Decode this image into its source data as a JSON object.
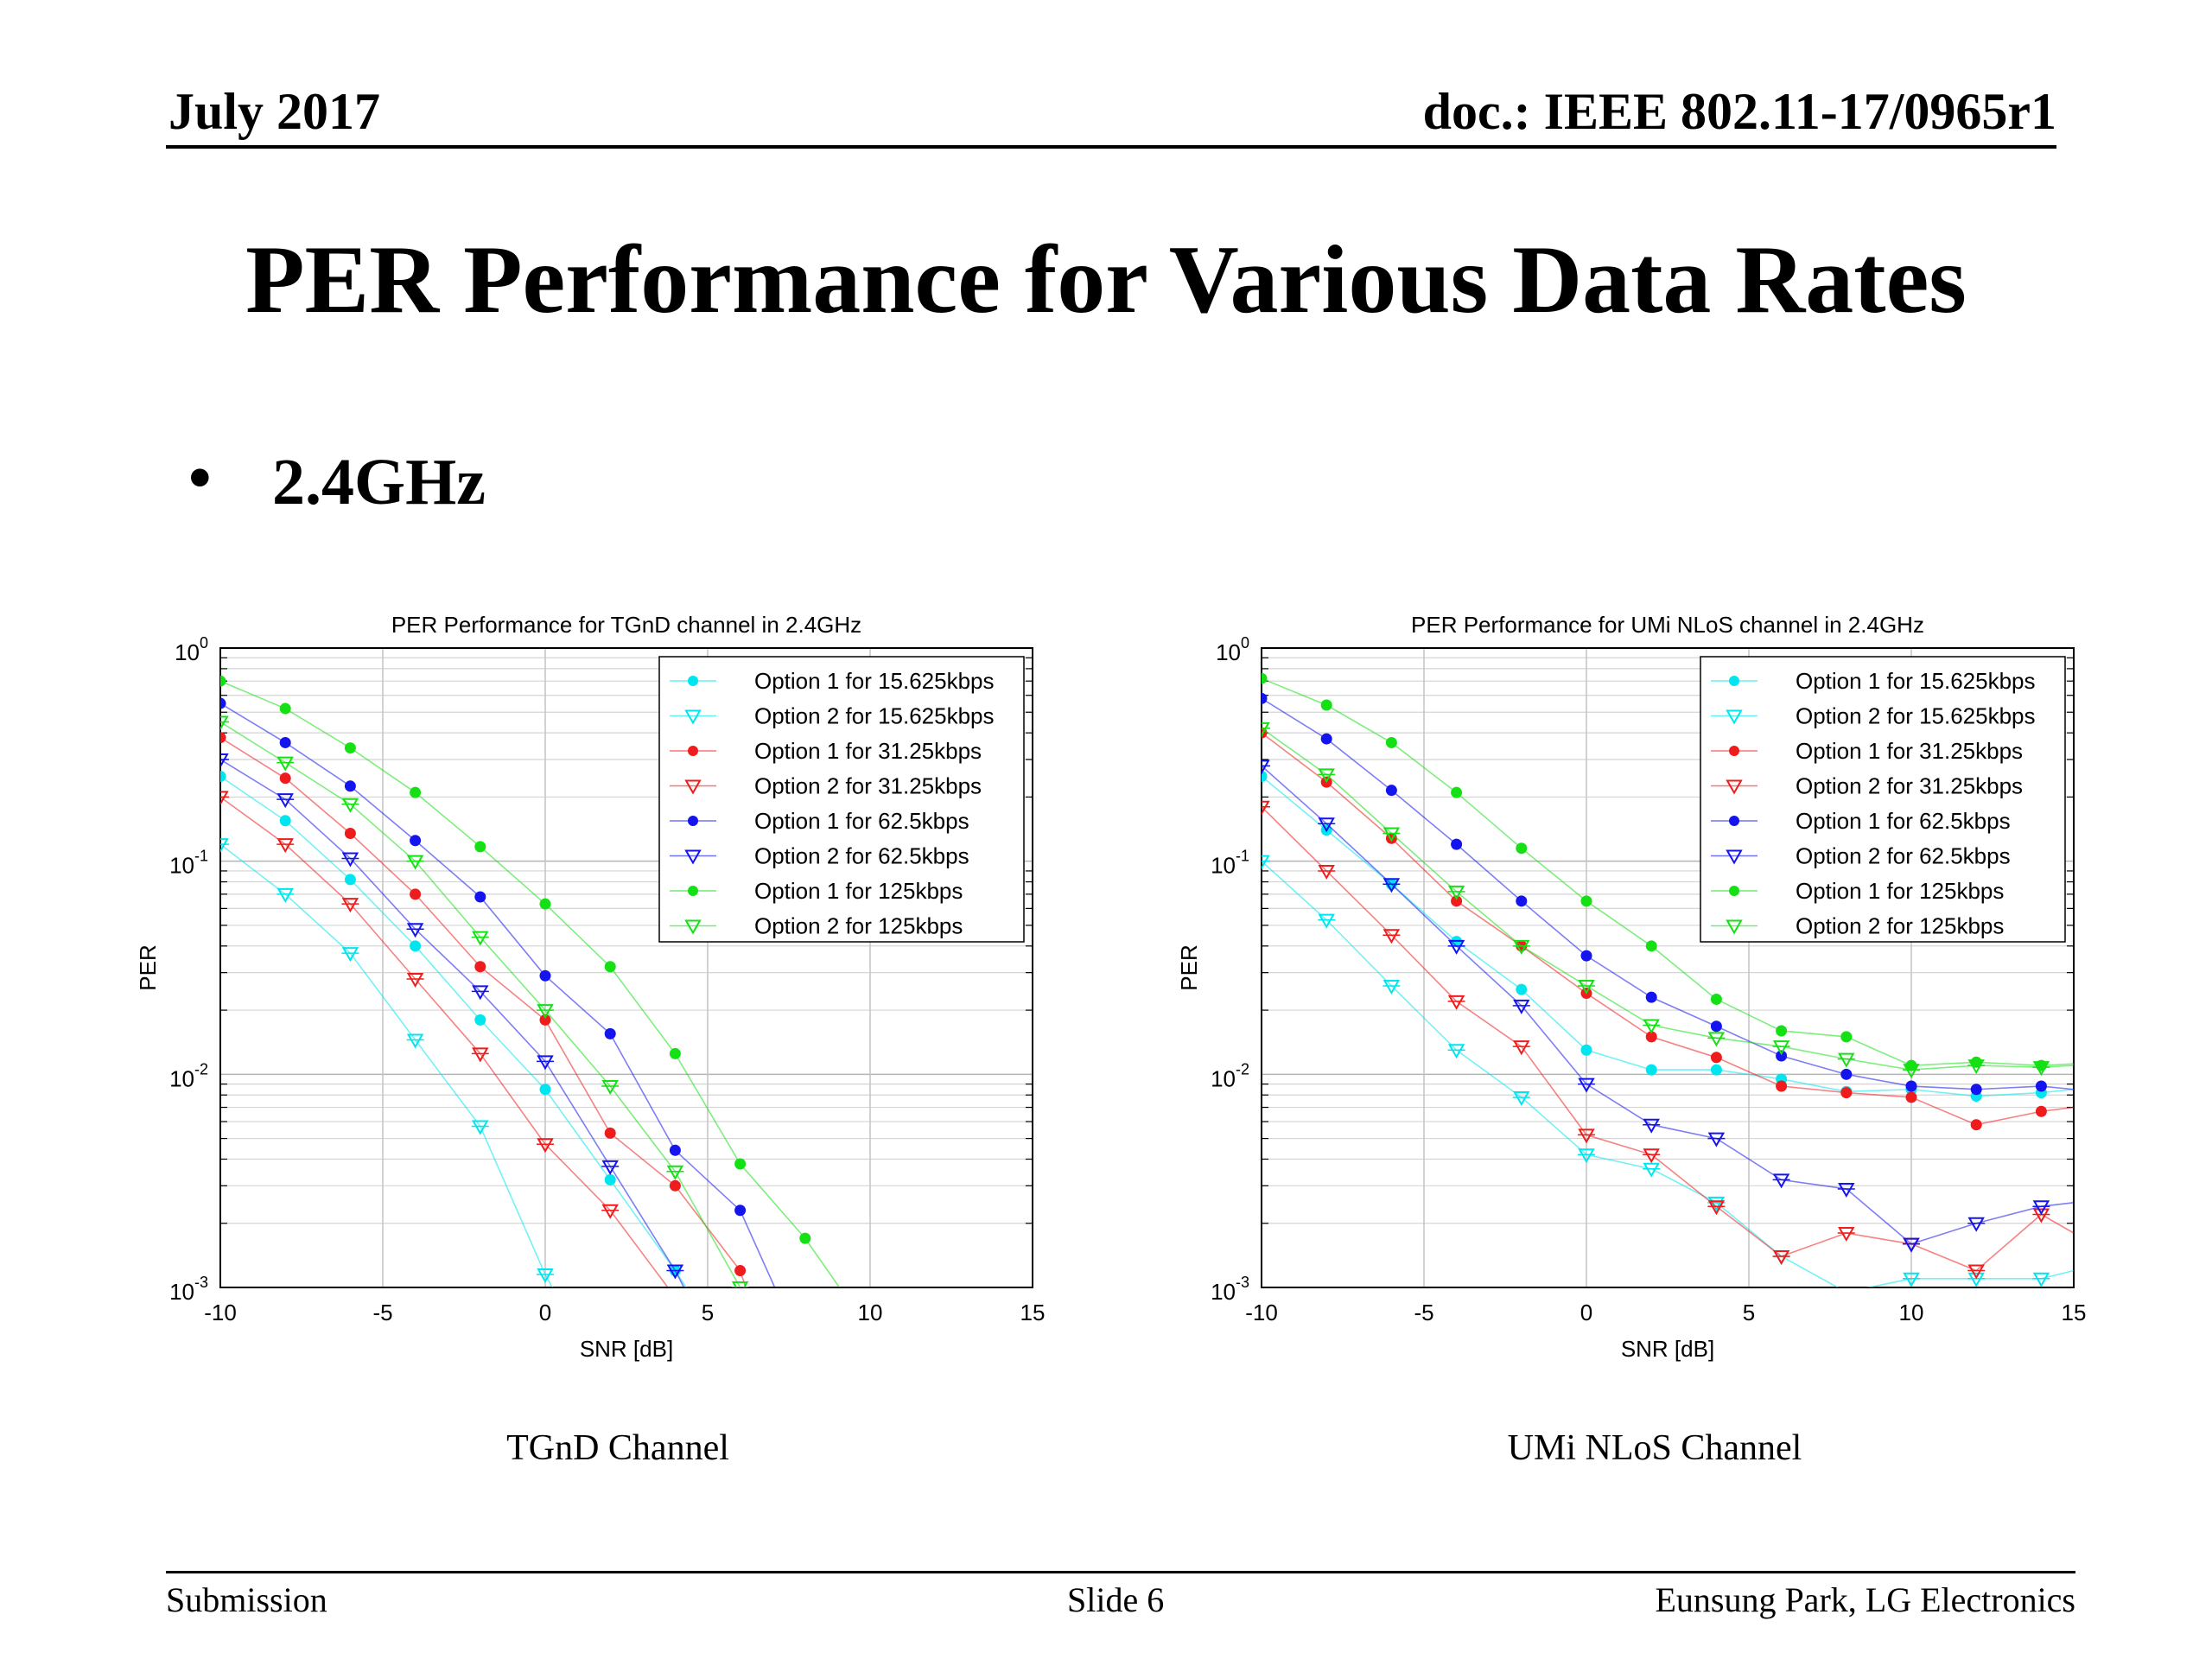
{
  "header": {
    "date": "July 2017",
    "doc": "doc.: IEEE 802.11-17/0965r1"
  },
  "title": "PER Performance for Various Data Rates",
  "bullet": {
    "marker": "•",
    "text": "2.4GHz"
  },
  "captions": {
    "left": "TGnD Channel",
    "right": "UMi NLoS Channel"
  },
  "footer": {
    "left": "Submission",
    "center": "Slide 6",
    "right": "Eunsung Park, LG Electronics"
  },
  "colors": {
    "cyan": "#00e5ee",
    "red": "#ee1c1c",
    "blue": "#1414ee",
    "green": "#14e014",
    "text": "#000000"
  },
  "chart_data": [
    {
      "type": "line",
      "title": "PER Performance for TGnD channel in 2.4GHz",
      "xlabel": "SNR [dB]",
      "ylabel": "PER",
      "xlim": [
        -10,
        15
      ],
      "ylim": [
        0.001,
        1
      ],
      "y_scale": "log",
      "grid": true,
      "legend_position": "top-right",
      "x_ticks": [
        -10,
        -5,
        0,
        5,
        10,
        15
      ],
      "y_ticks": [
        {
          "exp": "0",
          "value": 1
        },
        {
          "exp": "-1",
          "value": 0.1
        },
        {
          "exp": "-2",
          "value": 0.01
        },
        {
          "exp": "-3",
          "value": 0.001
        }
      ],
      "series": [
        {
          "name": "Option 1 for 15.625kbps",
          "color": "cyan",
          "marker": "dot",
          "x": [
            -10,
            -8,
            -6,
            -4,
            -2,
            0,
            2,
            4,
            5
          ],
          "y": [
            0.25,
            0.155,
            0.082,
            0.04,
            0.018,
            0.0085,
            0.0032,
            0.0012,
            0.0007
          ]
        },
        {
          "name": "Option 2 for 15.625kbps",
          "color": "cyan",
          "marker": "tri",
          "x": [
            -10,
            -8,
            -6,
            -4,
            -2,
            0,
            1
          ],
          "y": [
            0.12,
            0.07,
            0.037,
            0.0145,
            0.0057,
            0.00115,
            0.0006
          ]
        },
        {
          "name": "Option 1 for 31.25kbps",
          "color": "red",
          "marker": "dot",
          "x": [
            -10,
            -8,
            -6,
            -4,
            -2,
            0,
            2,
            4,
            6,
            6.5
          ],
          "y": [
            0.38,
            0.245,
            0.135,
            0.07,
            0.032,
            0.018,
            0.0053,
            0.003,
            0.0012,
            0.0007
          ]
        },
        {
          "name": "Option 2 for 31.25kbps",
          "color": "red",
          "marker": "tri",
          "x": [
            -10,
            -8,
            -6,
            -4,
            -2,
            0,
            2,
            4,
            4.5
          ],
          "y": [
            0.2,
            0.12,
            0.063,
            0.028,
            0.0125,
            0.0047,
            0.0023,
            0.0009,
            0.0006
          ]
        },
        {
          "name": "Option 1 for 62.5kbps",
          "color": "blue",
          "marker": "dot",
          "x": [
            -10,
            -8,
            -6,
            -4,
            -2,
            0,
            2,
            4,
            6,
            7.2
          ],
          "y": [
            0.55,
            0.36,
            0.225,
            0.125,
            0.068,
            0.029,
            0.0155,
            0.0044,
            0.0023,
            0.0009
          ]
        },
        {
          "name": "Option 2 for 62.5kbps",
          "color": "blue",
          "marker": "tri",
          "x": [
            -10,
            -8,
            -6,
            -4,
            -2,
            0,
            2,
            4,
            4.8
          ],
          "y": [
            0.3,
            0.195,
            0.103,
            0.048,
            0.0245,
            0.0115,
            0.0037,
            0.0012,
            0.0007
          ]
        },
        {
          "name": "Option 1 for 125kbps",
          "color": "green",
          "marker": "dot",
          "x": [
            -10,
            -8,
            -6,
            -4,
            -2,
            0,
            2,
            4,
            6,
            8,
            9.5
          ],
          "y": [
            0.7,
            0.52,
            0.34,
            0.21,
            0.117,
            0.063,
            0.032,
            0.0125,
            0.0038,
            0.0017,
            0.0008
          ]
        },
        {
          "name": "Option 2 for 125kbps",
          "color": "green",
          "marker": "tri",
          "x": [
            -10,
            -8,
            -6,
            -4,
            -2,
            0,
            2,
            4,
            6
          ],
          "y": [
            0.45,
            0.29,
            0.185,
            0.1,
            0.044,
            0.02,
            0.0088,
            0.0035,
            0.001
          ]
        }
      ]
    },
    {
      "type": "line",
      "title": "PER Performance for UMi NLoS channel in 2.4GHz",
      "xlabel": "SNR [dB]",
      "ylabel": "PER",
      "xlim": [
        -10,
        15
      ],
      "ylim": [
        0.001,
        1
      ],
      "y_scale": "log",
      "grid": true,
      "legend_position": "top-right",
      "x_ticks": [
        -10,
        -5,
        0,
        5,
        10,
        15
      ],
      "y_ticks": [
        {
          "exp": "0",
          "value": 1
        },
        {
          "exp": "-1",
          "value": 0.1
        },
        {
          "exp": "-2",
          "value": 0.01
        },
        {
          "exp": "-3",
          "value": 0.001
        }
      ],
      "series": [
        {
          "name": "Option 1 for 15.625kbps",
          "color": "cyan",
          "marker": "dot",
          "x": [
            -10,
            -8,
            -6,
            -4,
            -2,
            0,
            2,
            4,
            6,
            8,
            10,
            12,
            14,
            15
          ],
          "y": [
            0.25,
            0.14,
            0.078,
            0.042,
            0.025,
            0.013,
            0.0105,
            0.0105,
            0.0095,
            0.0083,
            0.0085,
            0.0079,
            0.0082,
            0.0085
          ]
        },
        {
          "name": "Option 2 for 15.625kbps",
          "color": "cyan",
          "marker": "tri",
          "x": [
            -10,
            -8,
            -6,
            -4,
            -2,
            0,
            2,
            4,
            6,
            8,
            10,
            12,
            14,
            15
          ],
          "y": [
            0.1,
            0.053,
            0.026,
            0.013,
            0.0078,
            0.0042,
            0.0036,
            0.0025,
            0.0014,
            0.00095,
            0.0011,
            0.0011,
            0.0011,
            0.0012
          ]
        },
        {
          "name": "Option 1 for 31.25kbps",
          "color": "red",
          "marker": "dot",
          "x": [
            -10,
            -8,
            -6,
            -4,
            -2,
            0,
            2,
            4,
            6,
            8,
            10,
            12,
            14,
            15
          ],
          "y": [
            0.4,
            0.235,
            0.128,
            0.065,
            0.04,
            0.024,
            0.015,
            0.012,
            0.0088,
            0.0082,
            0.0078,
            0.0058,
            0.0067,
            0.007
          ]
        },
        {
          "name": "Option 2 for 31.25kbps",
          "color": "red",
          "marker": "tri",
          "x": [
            -10,
            -8,
            -6,
            -4,
            -2,
            0,
            2,
            4,
            6,
            8,
            10,
            12,
            14,
            15
          ],
          "y": [
            0.18,
            0.09,
            0.045,
            0.022,
            0.0135,
            0.0052,
            0.0042,
            0.0024,
            0.0014,
            0.0018,
            0.0016,
            0.0012,
            0.0022,
            0.0018
          ]
        },
        {
          "name": "Option 1 for 62.5kbps",
          "color": "blue",
          "marker": "dot",
          "x": [
            -10,
            -8,
            -6,
            -4,
            -2,
            0,
            2,
            4,
            6,
            8,
            10,
            12,
            14,
            15
          ],
          "y": [
            0.58,
            0.375,
            0.215,
            0.12,
            0.065,
            0.036,
            0.023,
            0.0168,
            0.0122,
            0.01,
            0.0088,
            0.0085,
            0.0088,
            0.0085
          ]
        },
        {
          "name": "Option 2 for 62.5kbps",
          "color": "blue",
          "marker": "tri",
          "x": [
            -10,
            -8,
            -6,
            -4,
            -2,
            0,
            2,
            4,
            6,
            8,
            10,
            12,
            14,
            15
          ],
          "y": [
            0.28,
            0.15,
            0.078,
            0.04,
            0.021,
            0.009,
            0.0058,
            0.005,
            0.0032,
            0.0029,
            0.0016,
            0.002,
            0.0024,
            0.0025
          ]
        },
        {
          "name": "Option 1 for 125kbps",
          "color": "green",
          "marker": "dot",
          "x": [
            -10,
            -8,
            -6,
            -4,
            -2,
            0,
            2,
            4,
            6,
            8,
            10,
            12,
            14,
            15
          ],
          "y": [
            0.72,
            0.54,
            0.36,
            0.21,
            0.115,
            0.065,
            0.04,
            0.0225,
            0.016,
            0.015,
            0.011,
            0.0114,
            0.011,
            0.0112
          ]
        },
        {
          "name": "Option 2 for 125kbps",
          "color": "green",
          "marker": "tri",
          "x": [
            -10,
            -8,
            -6,
            -4,
            -2,
            0,
            2,
            4,
            6,
            8,
            10,
            12,
            14,
            15
          ],
          "y": [
            0.42,
            0.255,
            0.135,
            0.072,
            0.04,
            0.026,
            0.017,
            0.0148,
            0.0135,
            0.0118,
            0.0105,
            0.011,
            0.0108,
            0.011
          ]
        }
      ]
    }
  ]
}
